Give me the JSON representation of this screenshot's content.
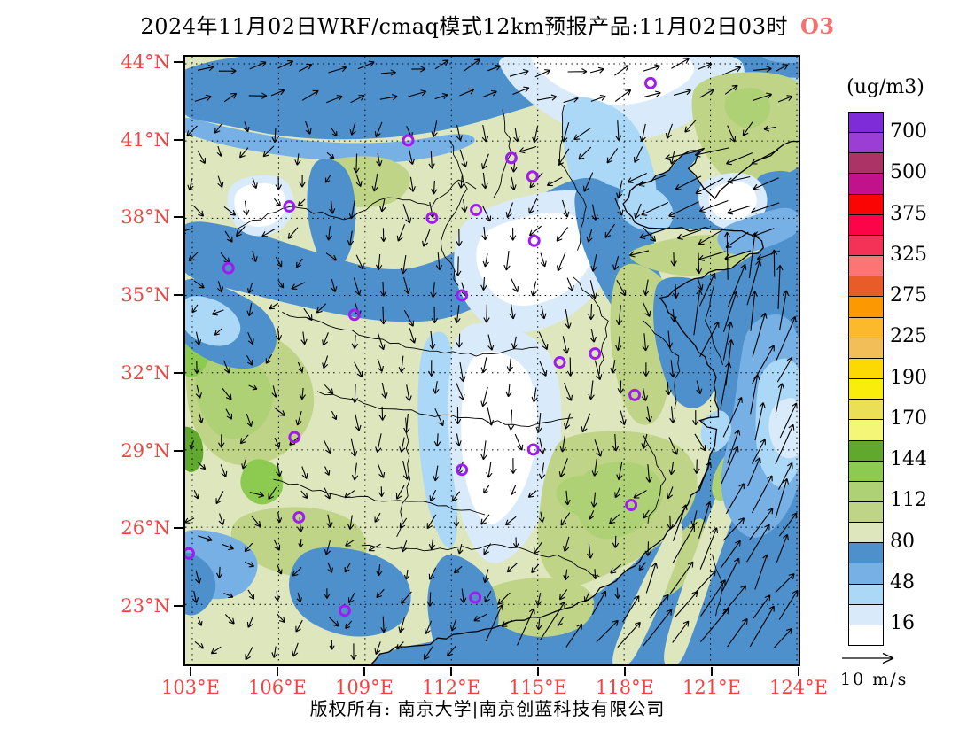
{
  "title": {
    "text": "2024年11月02日WRF/cmaq模式12km预报产品:11月02日03时",
    "species": "O3",
    "species_color": "#f57070"
  },
  "axes": {
    "label_color": "#f54343",
    "x_labels": [
      "103°E",
      "106°E",
      "109°E",
      "112°E",
      "115°E",
      "118°E",
      "121°E",
      "124°E"
    ],
    "y_labels": [
      "44°N",
      "41°N",
      "38°N",
      "35°N",
      "32°N",
      "29°N",
      "26°N",
      "23°N"
    ]
  },
  "legend": {
    "units": "(ug/m3)",
    "levels": [
      "700",
      "500",
      "375",
      "325",
      "275",
      "225",
      "190",
      "170",
      "144",
      "112",
      "80",
      "48",
      "16"
    ],
    "colors": [
      "#7e2bd8",
      "#9a3ed6",
      "#ac3366",
      "#c1128b",
      "#fb0404",
      "#fb0548",
      "#f43157",
      "#fa7573",
      "#e85c29",
      "#fc9802",
      "#fcb92b",
      "#f1be58",
      "#fcd903",
      "#f9ed0c",
      "#ebdf55",
      "#f4f678",
      "#61a92e",
      "#8ccb50",
      "#afd175",
      "#c0d488",
      "#dde6bc",
      "#4d90cc",
      "#77b0e4",
      "#aad8f6",
      "#d9ebfa",
      "#ffffff"
    ]
  },
  "wind_scale": {
    "label": "10 m/s"
  },
  "footer": {
    "text": "版权所有: 南京大学|南京创蓝科技有限公司"
  },
  "map": {
    "marker_color": "#a01bf0",
    "markers": [
      [
        528,
        30
      ],
      [
        253,
        95
      ],
      [
        370,
        115
      ],
      [
        394,
        136
      ],
      [
        118,
        170
      ],
      [
        330,
        174
      ],
      [
        280,
        183
      ],
      [
        396,
        209
      ],
      [
        49,
        240
      ],
      [
        314,
        271
      ],
      [
        192,
        293
      ],
      [
        465,
        337
      ],
      [
        425,
        347
      ],
      [
        510,
        384
      ],
      [
        124,
        432
      ],
      [
        395,
        446
      ],
      [
        314,
        469
      ],
      [
        506,
        509
      ],
      [
        129,
        523
      ],
      [
        4,
        564
      ],
      [
        181,
        629
      ],
      [
        329,
        614
      ]
    ]
  }
}
